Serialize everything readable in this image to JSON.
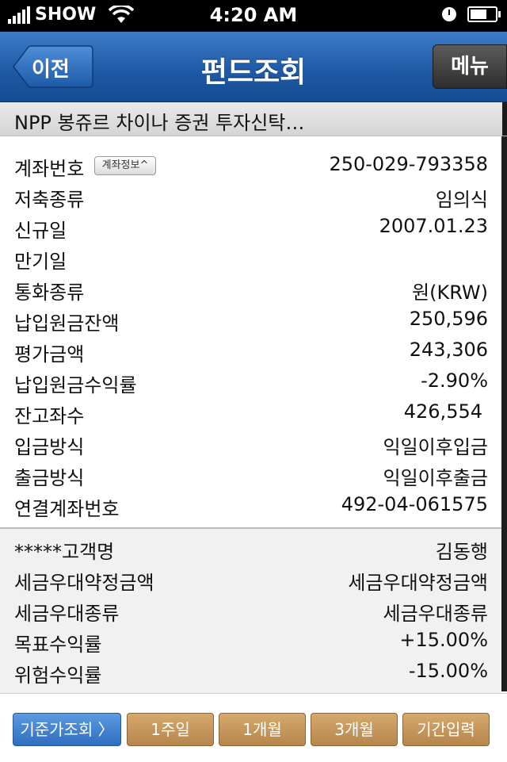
{
  "status_bar": {
    "carrier": "SHOW",
    "time": "4:20 AM"
  },
  "nav": {
    "back_label": "이전",
    "title": "펀드조회",
    "menu_label": "메뉴"
  },
  "fund_name": "NPP 봉쥬르 차이나 증권 투자신탁…",
  "account_badge": "계좌정보^",
  "details": [
    {
      "label": "계좌번호",
      "value": "250-029-793358"
    },
    {
      "label": "저축종류",
      "value": "임의식"
    },
    {
      "label": "신규일",
      "value": "2007.01.23"
    },
    {
      "label": "만기일",
      "value": ""
    },
    {
      "label": "통화종류",
      "value": "원(KRW)"
    },
    {
      "label": "납입원금잔액",
      "value": "250,596"
    },
    {
      "label": "평가금액",
      "value": "243,306"
    },
    {
      "label": "납입원금수익률",
      "value": "-2.90%"
    },
    {
      "label": "잔고좌수",
      "value": "426,554"
    },
    {
      "label": "입금방식",
      "value": "익일이후입금"
    },
    {
      "label": "출금방식",
      "value": "익일이후출금"
    },
    {
      "label": "연결계좌번호",
      "value": "492-04-061575"
    }
  ],
  "extra": [
    {
      "label": "*****고객명",
      "value": "김동행"
    },
    {
      "label": "세금우대약정금액",
      "value": "세금우대약정금액"
    },
    {
      "label": "세금우대종류",
      "value": "세금우대종류"
    },
    {
      "label": "목표수익률",
      "value": "+15.00%"
    },
    {
      "label": "위험수익률",
      "value": "-15.00%"
    }
  ],
  "bottom_buttons": {
    "price_lookup": "기준가조회 〉",
    "week1": "1주일",
    "month1": "1개월",
    "month3": "3개월",
    "period": "기간입력"
  }
}
